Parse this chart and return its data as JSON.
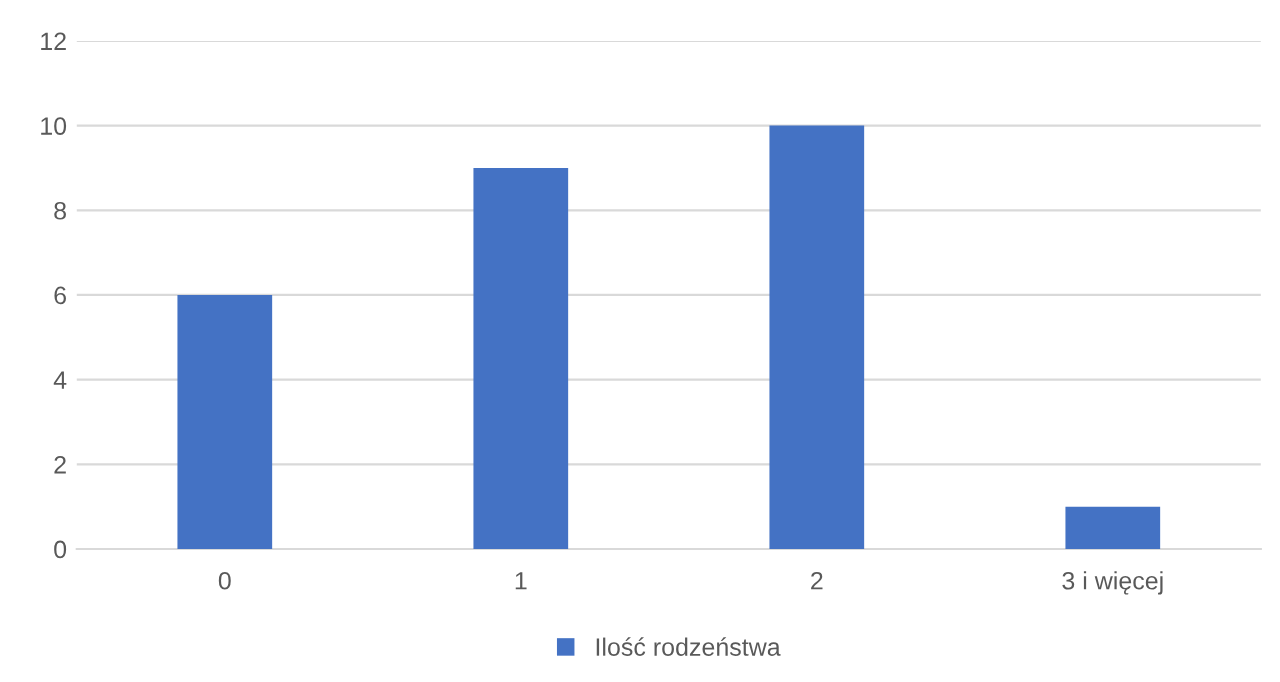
{
  "chart_data": {
    "type": "bar",
    "categories": [
      "0",
      "1",
      "2",
      "3 i więcej"
    ],
    "series": [
      {
        "name": "Ilość rodzeństwa",
        "color": "#4472c4",
        "values": [
          6,
          9,
          10,
          1
        ]
      }
    ],
    "ylim": [
      0,
      12
    ],
    "yticks": [
      0,
      2,
      4,
      6,
      8,
      10,
      12
    ],
    "grid": "y",
    "legend": "bottom"
  }
}
